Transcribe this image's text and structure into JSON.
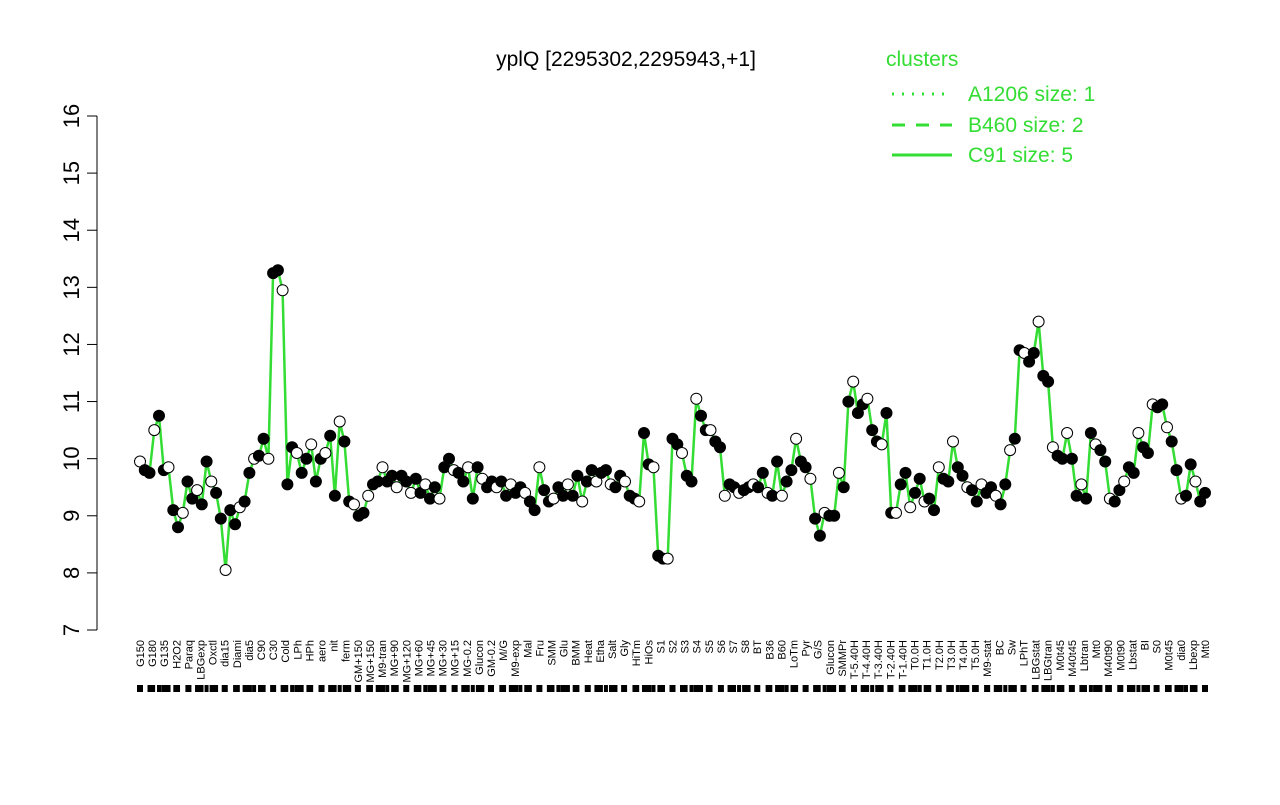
{
  "chart_data": {
    "type": "line",
    "title": "yplQ [2295302,2295943,+1]",
    "xlabel": "",
    "ylabel": "",
    "ylim": [
      7,
      16
    ],
    "yticks": [
      7,
      8,
      9,
      10,
      11,
      12,
      13,
      14,
      15,
      16
    ],
    "grid": false,
    "legend": {
      "title": "clusters",
      "placement": "top-right",
      "entries": [
        {
          "label": "A1206 size: 1",
          "style": "dotted"
        },
        {
          "label": "B460 size: 2",
          "style": "dashed"
        },
        {
          "label": "C91 size: 5",
          "style": "solid"
        }
      ]
    },
    "series_color": "#33dd33",
    "x_tick_labels": [
      "G150",
      "G180",
      "G135",
      "H2O2",
      "Paraq",
      "LBGexp",
      "Oxctl",
      "dia15",
      "Diami",
      "dia5",
      "C90",
      "C30",
      "Cold",
      "LPh",
      "HPh",
      "aero",
      "nit",
      "ferm",
      "GM+150",
      "MG+150",
      "M9-tran",
      "MG+90",
      "MG+120",
      "MG+60",
      "MG+45",
      "MG+30",
      "MG+15",
      "MG-0.2",
      "Glucon",
      "GM-0.2",
      "M/G",
      "M9-exp",
      "Mal",
      "Fru",
      "SMM",
      "Glu",
      "BMM",
      "Heat",
      "Etha",
      "Salt",
      "Gly",
      "HiTm",
      "HiOs",
      "S1",
      "S2",
      "S3",
      "S4",
      "S5",
      "S6",
      "S7",
      "S8",
      "BT",
      "B36",
      "B60",
      "LoTm",
      "Pyr",
      "G/S",
      "Glucon",
      "SMMPr",
      "T-5.40H",
      "T-4.40H",
      "T-3.40H",
      "T-2.40H",
      "T-1.40H",
      "T0.0H",
      "T1.0H",
      "T2.0H",
      "T3.0H",
      "T4.0H",
      "T5.0H",
      "M9-stat",
      "BC",
      "Sw",
      "LPhT",
      "LBGstat",
      "LBGtran",
      "M0t45",
      "M40t45",
      "Lbtran",
      "Mt0",
      "M40t90",
      "M0t90",
      "Lbstat",
      "BI",
      "S0",
      "M0t45",
      "dia0",
      "Lbexp",
      "Mt0"
    ],
    "points": [
      [
        1,
        9.95
      ],
      [
        2,
        9.8
      ],
      [
        3,
        9.75
      ],
      [
        4,
        10.5
      ],
      [
        5,
        10.75
      ],
      [
        6,
        9.8
      ],
      [
        7,
        9.85
      ],
      [
        8,
        9.1
      ],
      [
        9,
        8.8
      ],
      [
        10,
        9.05
      ],
      [
        11,
        9.6
      ],
      [
        12,
        9.3
      ],
      [
        13,
        9.45
      ],
      [
        14,
        9.2
      ],
      [
        15,
        9.95
      ],
      [
        16,
        9.6
      ],
      [
        17,
        9.4
      ],
      [
        18,
        8.95
      ],
      [
        19,
        8.05
      ],
      [
        20,
        9.1
      ],
      [
        21,
        8.85
      ],
      [
        22,
        9.15
      ],
      [
        23,
        9.25
      ],
      [
        24,
        9.75
      ],
      [
        25,
        10.0
      ],
      [
        26,
        10.05
      ],
      [
        27,
        10.35
      ],
      [
        28,
        10.0
      ],
      [
        29,
        13.25
      ],
      [
        30,
        13.3
      ],
      [
        31,
        12.95
      ],
      [
        32,
        9.55
      ],
      [
        33,
        10.2
      ],
      [
        34,
        10.1
      ],
      [
        35,
        9.75
      ],
      [
        36,
        10.0
      ],
      [
        37,
        10.25
      ],
      [
        38,
        9.6
      ],
      [
        39,
        10.0
      ],
      [
        40,
        10.1
      ],
      [
        41,
        10.4
      ],
      [
        42,
        9.35
      ],
      [
        43,
        10.65
      ],
      [
        44,
        10.3
      ],
      [
        45,
        9.25
      ],
      [
        46,
        9.2
      ],
      [
        47,
        9.0
      ],
      [
        48,
        9.05
      ],
      [
        49,
        9.35
      ],
      [
        50,
        9.55
      ],
      [
        51,
        9.6
      ],
      [
        52,
        9.85
      ],
      [
        53,
        9.6
      ],
      [
        54,
        9.7
      ],
      [
        55,
        9.5
      ],
      [
        56,
        9.7
      ],
      [
        57,
        9.6
      ],
      [
        58,
        9.4
      ],
      [
        59,
        9.65
      ],
      [
        60,
        9.4
      ],
      [
        61,
        9.55
      ],
      [
        62,
        9.3
      ],
      [
        63,
        9.5
      ],
      [
        64,
        9.3
      ],
      [
        65,
        9.85
      ],
      [
        66,
        10.0
      ],
      [
        67,
        9.8
      ],
      [
        68,
        9.75
      ],
      [
        69,
        9.6
      ],
      [
        70,
        9.85
      ],
      [
        71,
        9.3
      ],
      [
        72,
        9.85
      ],
      [
        73,
        9.65
      ],
      [
        74,
        9.5
      ],
      [
        75,
        9.6
      ],
      [
        76,
        9.5
      ],
      [
        77,
        9.6
      ],
      [
        78,
        9.35
      ],
      [
        79,
        9.55
      ],
      [
        80,
        9.4
      ],
      [
        81,
        9.5
      ],
      [
        82,
        9.4
      ],
      [
        83,
        9.25
      ],
      [
        84,
        9.1
      ],
      [
        85,
        9.85
      ],
      [
        86,
        9.45
      ],
      [
        87,
        9.25
      ],
      [
        88,
        9.3
      ],
      [
        89,
        9.5
      ],
      [
        90,
        9.35
      ],
      [
        91,
        9.55
      ],
      [
        92,
        9.35
      ],
      [
        93,
        9.7
      ],
      [
        94,
        9.25
      ],
      [
        95,
        9.6
      ],
      [
        96,
        9.8
      ],
      [
        97,
        9.6
      ],
      [
        98,
        9.75
      ],
      [
        99,
        9.8
      ],
      [
        100,
        9.55
      ],
      [
        101,
        9.5
      ],
      [
        102,
        9.7
      ],
      [
        103,
        9.6
      ],
      [
        104,
        9.35
      ],
      [
        105,
        9.3
      ],
      [
        106,
        9.25
      ],
      [
        107,
        10.45
      ],
      [
        108,
        9.9
      ],
      [
        109,
        9.85
      ],
      [
        110,
        8.3
      ],
      [
        111,
        8.25
      ],
      [
        112,
        8.25
      ],
      [
        113,
        10.35
      ],
      [
        114,
        10.25
      ],
      [
        115,
        10.1
      ],
      [
        116,
        9.7
      ],
      [
        117,
        9.6
      ],
      [
        118,
        11.05
      ],
      [
        119,
        10.75
      ],
      [
        120,
        10.5
      ],
      [
        121,
        10.5
      ],
      [
        122,
        10.3
      ],
      [
        123,
        10.2
      ],
      [
        124,
        9.35
      ],
      [
        125,
        9.55
      ],
      [
        126,
        9.5
      ],
      [
        127,
        9.4
      ],
      [
        128,
        9.45
      ],
      [
        129,
        9.5
      ],
      [
        130,
        9.55
      ],
      [
        131,
        9.5
      ],
      [
        132,
        9.75
      ],
      [
        133,
        9.4
      ],
      [
        134,
        9.35
      ],
      [
        135,
        9.95
      ],
      [
        136,
        9.35
      ],
      [
        137,
        9.6
      ],
      [
        138,
        9.8
      ],
      [
        139,
        10.35
      ],
      [
        140,
        9.95
      ],
      [
        141,
        9.85
      ],
      [
        142,
        9.65
      ],
      [
        143,
        8.95
      ],
      [
        144,
        8.65
      ],
      [
        145,
        9.05
      ],
      [
        146,
        9.0
      ],
      [
        147,
        9.0
      ],
      [
        148,
        9.75
      ],
      [
        149,
        9.5
      ],
      [
        150,
        11.0
      ],
      [
        151,
        11.35
      ],
      [
        152,
        10.8
      ],
      [
        153,
        10.95
      ],
      [
        154,
        11.05
      ],
      [
        155,
        10.5
      ],
      [
        156,
        10.3
      ],
      [
        157,
        10.25
      ],
      [
        158,
        10.8
      ],
      [
        159,
        9.05
      ],
      [
        160,
        9.05
      ],
      [
        161,
        9.55
      ],
      [
        162,
        9.75
      ],
      [
        163,
        9.15
      ],
      [
        164,
        9.4
      ],
      [
        165,
        9.65
      ],
      [
        166,
        9.25
      ],
      [
        167,
        9.3
      ],
      [
        168,
        9.1
      ],
      [
        169,
        9.85
      ],
      [
        170,
        9.65
      ],
      [
        171,
        9.6
      ],
      [
        172,
        10.3
      ],
      [
        173,
        9.85
      ],
      [
        174,
        9.7
      ],
      [
        175,
        9.5
      ],
      [
        176,
        9.45
      ],
      [
        177,
        9.25
      ],
      [
        178,
        9.55
      ],
      [
        179,
        9.4
      ],
      [
        180,
        9.5
      ],
      [
        181,
        9.35
      ],
      [
        182,
        9.2
      ],
      [
        183,
        9.55
      ],
      [
        184,
        10.15
      ],
      [
        185,
        10.35
      ],
      [
        186,
        11.9
      ],
      [
        187,
        11.85
      ],
      [
        188,
        11.7
      ],
      [
        189,
        11.85
      ],
      [
        190,
        12.4
      ],
      [
        191,
        11.45
      ],
      [
        192,
        11.35
      ],
      [
        193,
        10.2
      ],
      [
        194,
        10.05
      ],
      [
        195,
        10.0
      ],
      [
        196,
        10.45
      ],
      [
        197,
        10.0
      ],
      [
        198,
        9.35
      ],
      [
        199,
        9.55
      ],
      [
        200,
        9.3
      ],
      [
        201,
        10.45
      ],
      [
        202,
        10.25
      ],
      [
        203,
        10.15
      ],
      [
        204,
        9.95
      ],
      [
        205,
        9.3
      ],
      [
        206,
        9.25
      ],
      [
        207,
        9.45
      ],
      [
        208,
        9.6
      ],
      [
        209,
        9.85
      ],
      [
        210,
        9.75
      ],
      [
        211,
        10.45
      ],
      [
        212,
        10.2
      ],
      [
        213,
        10.1
      ],
      [
        214,
        10.95
      ],
      [
        215,
        10.9
      ],
      [
        216,
        10.95
      ],
      [
        217,
        10.55
      ],
      [
        218,
        10.3
      ],
      [
        219,
        9.8
      ],
      [
        220,
        9.3
      ],
      [
        221,
        9.35
      ],
      [
        222,
        9.9
      ],
      [
        223,
        9.6
      ],
      [
        224,
        9.25
      ],
      [
        225,
        9.4
      ]
    ]
  }
}
